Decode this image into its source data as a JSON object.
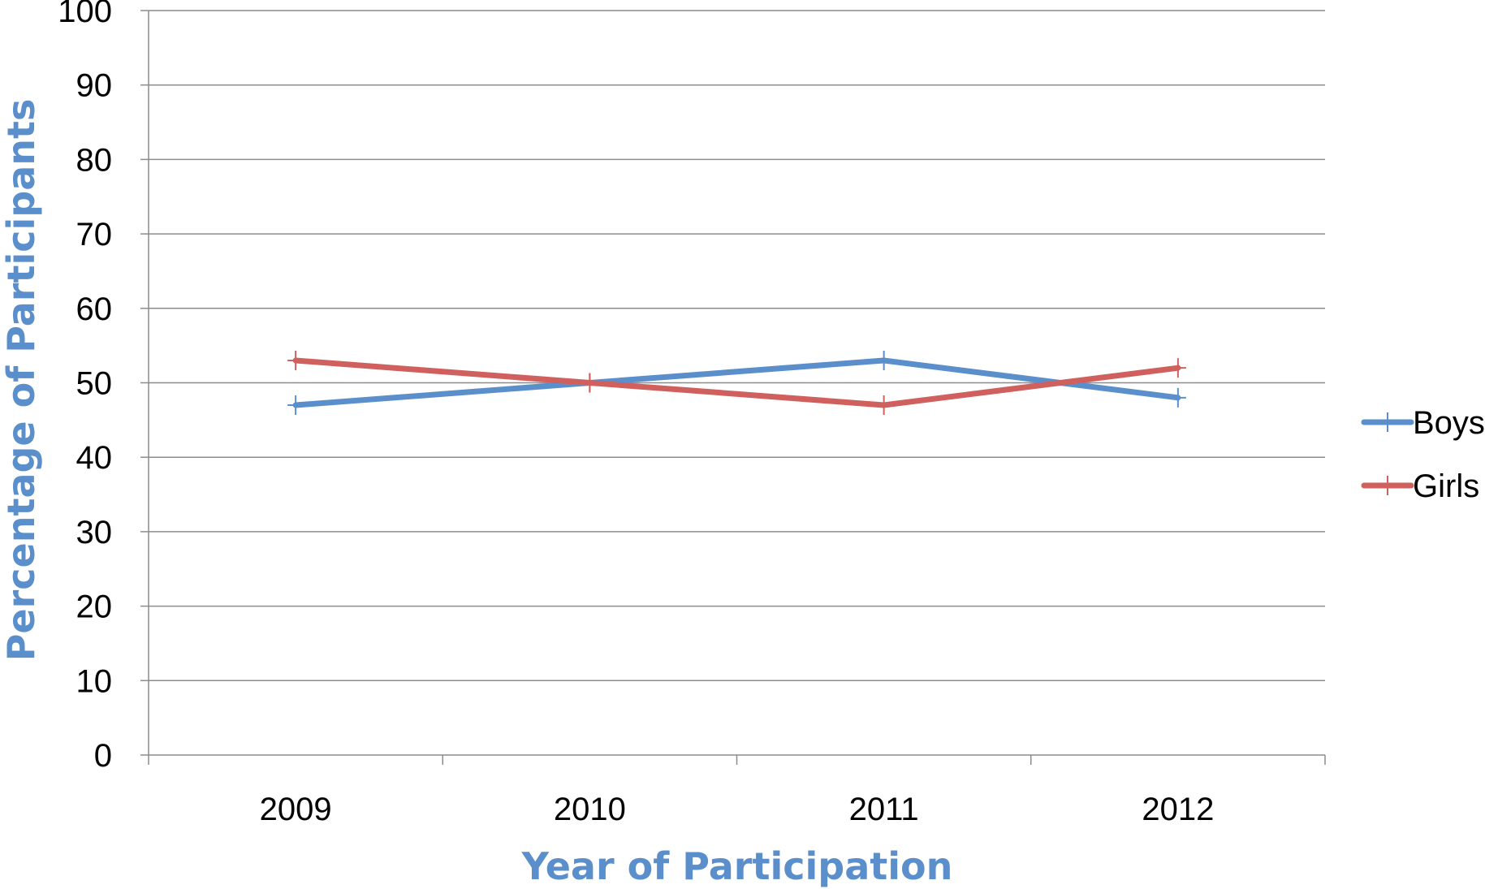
{
  "chart_data": {
    "type": "line",
    "categories": [
      "2009",
      "2010",
      "2011",
      "2012"
    ],
    "series": [
      {
        "name": "Boys",
        "values": [
          47,
          50,
          53,
          48
        ],
        "color": "#5b8fcb"
      },
      {
        "name": "Girls",
        "values": [
          53,
          50,
          47,
          52
        ],
        "color": "#d0605d"
      }
    ],
    "title": "",
    "xlabel": "Year of Participation",
    "ylabel": "Percentage of Participants",
    "ylim": [
      0,
      100
    ],
    "yticks": [
      "0",
      "10",
      "20",
      "30",
      "40",
      "50",
      "60",
      "70",
      "80",
      "90",
      "100"
    ],
    "grid": true,
    "legend_position": "right",
    "axis_title_color": "#5b8fcb"
  }
}
